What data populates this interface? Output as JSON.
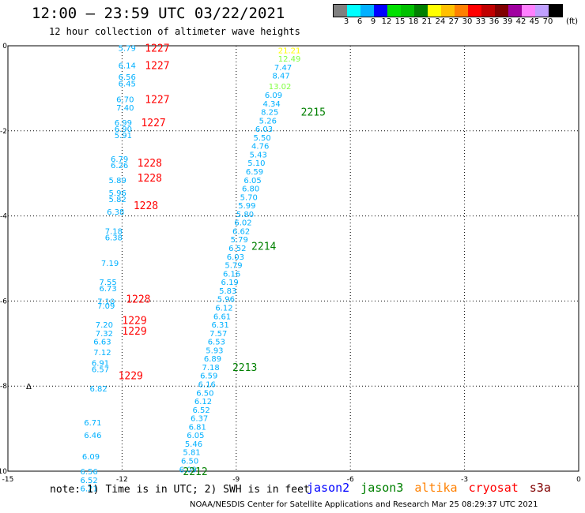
{
  "header": {
    "title": "12:00 – 23:59 UTC 03/22/2021",
    "subtitle": "12 hour collection of altimeter wave heights"
  },
  "legend": {
    "colors": [
      "#808080",
      "#00ffff",
      "#00b0ff",
      "#0000ff",
      "#00e000",
      "#00c000",
      "#008000",
      "#ffff00",
      "#ffc000",
      "#ff8000",
      "#ff0000",
      "#c00000",
      "#800000",
      "#a000a0",
      "#ff80ff",
      "#c0a0ff",
      "#000000"
    ],
    "labels": [
      "3",
      "6",
      "9",
      "12",
      "15",
      "18",
      "21",
      "24",
      "27",
      "30",
      "33",
      "36",
      "39",
      "42",
      "45",
      "70"
    ],
    "unit": "(ft)"
  },
  "axes": {
    "x_ticks": [
      "-15",
      "-12",
      "-9",
      "-6",
      "-3",
      "0"
    ],
    "y_ticks": [
      "0",
      "-2",
      "-4",
      "-6",
      "-8",
      "-10"
    ]
  },
  "note": "note: 1) Time is in UTC; 2) SWH is in feet",
  "satellites": [
    {
      "name": "jason2",
      "color": "#0000ff"
    },
    {
      "name": "jason3",
      "color": "#008000"
    },
    {
      "name": "altika",
      "color": "#ff8000"
    },
    {
      "name": "cryosat",
      "color": "#ff0000"
    },
    {
      "name": "s3a",
      "color": "#800000"
    }
  ],
  "footer": "NOAA/NESDIS Center for Satellite Applications and Research    Mar 25 08:29:37 UTC 2021",
  "map_data": {
    "track_left": [
      {
        "lon": -12.1,
        "lat": -0.05,
        "v": "5.79"
      },
      {
        "lon": -12.1,
        "lat": -0.45,
        "v": "6.14"
      },
      {
        "lon": -12.1,
        "lat": -0.72,
        "v": "6.56"
      },
      {
        "lon": -12.1,
        "lat": -0.88,
        "v": "6.45"
      },
      {
        "lon": -12.15,
        "lat": -1.25,
        "v": "6.70"
      },
      {
        "lon": -12.15,
        "lat": -1.45,
        "v": "7.40"
      },
      {
        "lon": -12.2,
        "lat": -1.8,
        "v": "6.99"
      },
      {
        "lon": -12.2,
        "lat": -1.95,
        "v": "6.90"
      },
      {
        "lon": -12.2,
        "lat": -2.1,
        "v": "5.91"
      },
      {
        "lon": -12.3,
        "lat": -2.65,
        "v": "6.79"
      },
      {
        "lon": -12.3,
        "lat": -2.8,
        "v": "6.26"
      },
      {
        "lon": -12.35,
        "lat": -3.15,
        "v": "5.89"
      },
      {
        "lon": -12.35,
        "lat": -3.45,
        "v": "5.96"
      },
      {
        "lon": -12.35,
        "lat": -3.6,
        "v": "5.82"
      },
      {
        "lon": -12.4,
        "lat": -3.9,
        "v": "6.38"
      },
      {
        "lon": -12.45,
        "lat": -4.35,
        "v": "7.18"
      },
      {
        "lon": -12.45,
        "lat": -4.5,
        "v": "6.38"
      },
      {
        "lon": -12.55,
        "lat": -5.1,
        "v": "7.19"
      },
      {
        "lon": -12.6,
        "lat": -5.55,
        "v": "7.55"
      },
      {
        "lon": -12.6,
        "lat": -5.7,
        "v": "6.73"
      },
      {
        "lon": -12.65,
        "lat": -6.0,
        "v": "7.10"
      },
      {
        "lon": -12.65,
        "lat": -6.1,
        "v": "7.09"
      },
      {
        "lon": -12.7,
        "lat": -6.55,
        "v": "7.20"
      },
      {
        "lon": -12.7,
        "lat": -6.75,
        "v": "7.32"
      },
      {
        "lon": -12.75,
        "lat": -6.95,
        "v": "6.63"
      },
      {
        "lon": -12.75,
        "lat": -7.2,
        "v": "7.12"
      },
      {
        "lon": -12.8,
        "lat": -7.45,
        "v": "6.91"
      },
      {
        "lon": -12.8,
        "lat": -7.6,
        "v": "6.57"
      },
      {
        "lon": -12.85,
        "lat": -8.05,
        "v": "6.82"
      },
      {
        "lon": -13.0,
        "lat": -8.85,
        "v": "6.71"
      },
      {
        "lon": -13.0,
        "lat": -9.15,
        "v": "6.46"
      },
      {
        "lon": -13.05,
        "lat": -9.65,
        "v": "6.09"
      },
      {
        "lon": -13.1,
        "lat": -10.0,
        "v": "6.56"
      },
      {
        "lon": -13.1,
        "lat": -10.2,
        "v": "6.52"
      },
      {
        "lon": -13.1,
        "lat": -10.4,
        "v": "6.21"
      }
    ],
    "track_right": [
      {
        "lon": -7.9,
        "lat": -0.1,
        "v": "21.21",
        "c": "#ffff00"
      },
      {
        "lon": -7.9,
        "lat": -0.3,
        "v": "12.49",
        "c": "#80ff40"
      },
      {
        "lon": -8.0,
        "lat": -0.5,
        "v": "7.47"
      },
      {
        "lon": -8.05,
        "lat": -0.7,
        "v": "8.47"
      },
      {
        "lon": -8.15,
        "lat": -0.95,
        "v": "13.02",
        "c": "#80ff40"
      },
      {
        "lon": -8.25,
        "lat": -1.15,
        "v": "6.09"
      },
      {
        "lon": -8.3,
        "lat": -1.35,
        "v": "4.34"
      },
      {
        "lon": -8.35,
        "lat": -1.55,
        "v": "8.25"
      },
      {
        "lon": -8.4,
        "lat": -1.75,
        "v": "5.26"
      },
      {
        "lon": -8.5,
        "lat": -1.95,
        "v": "6.03"
      },
      {
        "lon": -8.55,
        "lat": -2.15,
        "v": "5.50"
      },
      {
        "lon": -8.6,
        "lat": -2.35,
        "v": "4.76"
      },
      {
        "lon": -8.65,
        "lat": -2.55,
        "v": "5.43"
      },
      {
        "lon": -8.7,
        "lat": -2.75,
        "v": "5.10"
      },
      {
        "lon": -8.75,
        "lat": -2.95,
        "v": "6.59"
      },
      {
        "lon": -8.8,
        "lat": -3.15,
        "v": "6.05"
      },
      {
        "lon": -8.85,
        "lat": -3.35,
        "v": "6.80"
      },
      {
        "lon": -8.9,
        "lat": -3.55,
        "v": "5.70"
      },
      {
        "lon": -8.95,
        "lat": -3.75,
        "v": "5.99"
      },
      {
        "lon": -9.0,
        "lat": -3.95,
        "v": "5.80"
      },
      {
        "lon": -9.05,
        "lat": -4.15,
        "v": "6.02"
      },
      {
        "lon": -9.1,
        "lat": -4.35,
        "v": "6.62"
      },
      {
        "lon": -9.15,
        "lat": -4.55,
        "v": "5.79"
      },
      {
        "lon": -9.2,
        "lat": -4.75,
        "v": "6.52"
      },
      {
        "lon": -9.25,
        "lat": -4.95,
        "v": "6.03"
      },
      {
        "lon": -9.3,
        "lat": -5.15,
        "v": "5.79"
      },
      {
        "lon": -9.35,
        "lat": -5.35,
        "v": "6.16"
      },
      {
        "lon": -9.4,
        "lat": -5.55,
        "v": "6.19"
      },
      {
        "lon": -9.45,
        "lat": -5.75,
        "v": "5.83"
      },
      {
        "lon": -9.5,
        "lat": -5.95,
        "v": "5.96"
      },
      {
        "lon": -9.55,
        "lat": -6.15,
        "v": "6.12"
      },
      {
        "lon": -9.6,
        "lat": -6.35,
        "v": "6.61"
      },
      {
        "lon": -9.65,
        "lat": -6.55,
        "v": "6.31"
      },
      {
        "lon": -9.7,
        "lat": -6.75,
        "v": "7.57"
      },
      {
        "lon": -9.75,
        "lat": -6.95,
        "v": "6.53"
      },
      {
        "lon": -9.8,
        "lat": -7.15,
        "v": "5.93"
      },
      {
        "lon": -9.85,
        "lat": -7.35,
        "v": "6.89"
      },
      {
        "lon": -9.9,
        "lat": -7.55,
        "v": "7.18"
      },
      {
        "lon": -9.95,
        "lat": -7.75,
        "v": "6.59"
      },
      {
        "lon": -10.0,
        "lat": -7.95,
        "v": "6.16"
      },
      {
        "lon": -10.05,
        "lat": -8.15,
        "v": "6.50"
      },
      {
        "lon": -10.1,
        "lat": -8.35,
        "v": "6.12"
      },
      {
        "lon": -10.15,
        "lat": -8.55,
        "v": "6.52"
      },
      {
        "lon": -10.2,
        "lat": -8.75,
        "v": "6.37"
      },
      {
        "lon": -10.25,
        "lat": -8.95,
        "v": "6.81"
      },
      {
        "lon": -10.3,
        "lat": -9.15,
        "v": "6.05"
      },
      {
        "lon": -10.35,
        "lat": -9.35,
        "v": "5.46"
      },
      {
        "lon": -10.4,
        "lat": -9.55,
        "v": "5.81"
      },
      {
        "lon": -10.45,
        "lat": -9.75,
        "v": "6.50"
      },
      {
        "lon": -10.5,
        "lat": -9.95,
        "v": "6.09"
      }
    ],
    "times_left": [
      {
        "lon": -11.4,
        "lat": -0.05,
        "t": "1227"
      },
      {
        "lon": -11.4,
        "lat": -0.45,
        "t": "1227"
      },
      {
        "lon": -11.4,
        "lat": -1.25,
        "t": "1227"
      },
      {
        "lon": -11.5,
        "lat": -1.8,
        "t": "1227"
      },
      {
        "lon": -11.6,
        "lat": -2.75,
        "t": "1228"
      },
      {
        "lon": -11.6,
        "lat": -3.1,
        "t": "1228"
      },
      {
        "lon": -11.7,
        "lat": -3.75,
        "t": "1228"
      },
      {
        "lon": -11.9,
        "lat": -5.95,
        "t": "1228"
      },
      {
        "lon": -12.0,
        "lat": -6.45,
        "t": "1229"
      },
      {
        "lon": -12.0,
        "lat": -6.7,
        "t": "1229"
      },
      {
        "lon": -12.1,
        "lat": -7.75,
        "t": "1229"
      }
    ],
    "times_right": [
      {
        "lon": -7.3,
        "lat": -1.55,
        "t": "2215"
      },
      {
        "lon": -8.6,
        "lat": -4.7,
        "t": "2214"
      },
      {
        "lon": -9.1,
        "lat": -7.55,
        "t": "2213"
      },
      {
        "lon": -10.4,
        "lat": -10.0,
        "t": "2212"
      }
    ],
    "symbol": "Δ",
    "track_color": "#00b0ff",
    "time_left_color": "#ff0000",
    "time_right_color": "#008000"
  }
}
